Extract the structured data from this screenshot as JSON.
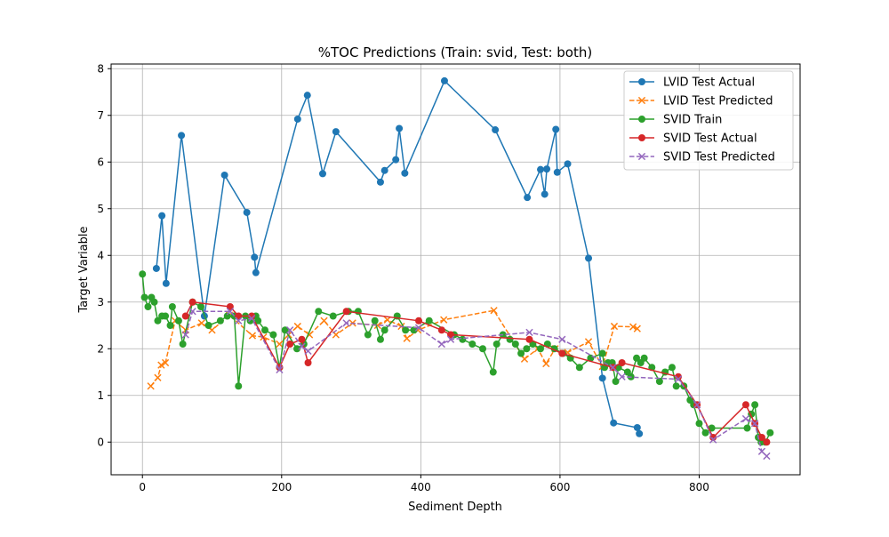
{
  "chart_data": {
    "type": "line",
    "title": "%TOC Predictions (Train: svid, Test: both)",
    "xlabel": "Sediment Depth",
    "ylabel": "Target Variable",
    "xlim": [
      -45,
      945
    ],
    "ylim": [
      -0.7,
      8.1
    ],
    "xticks": [
      0,
      200,
      400,
      600,
      800
    ],
    "yticks": [
      0,
      1,
      2,
      3,
      4,
      5,
      6,
      7,
      8
    ],
    "grid": true,
    "legend_position": "top-right",
    "series": [
      {
        "name": "LVID Test Actual",
        "color": "#1f77b4",
        "line": "solid",
        "marker": "circle",
        "x": [
          20,
          28,
          34,
          56,
          89,
          118,
          150,
          161,
          163,
          223,
          237,
          259,
          278,
          342,
          348,
          364,
          369,
          377,
          434,
          507,
          553,
          572,
          578,
          581,
          594,
          596,
          611,
          641,
          661,
          677,
          711,
          714
        ],
        "y": [
          3.72,
          4.85,
          3.4,
          6.57,
          2.7,
          5.72,
          4.92,
          3.96,
          3.63,
          6.92,
          7.43,
          5.75,
          6.65,
          5.57,
          5.82,
          6.05,
          6.72,
          5.76,
          7.74,
          6.69,
          5.24,
          5.84,
          5.31,
          5.85,
          6.7,
          5.78,
          5.96,
          3.94,
          1.37,
          0.41,
          0.31,
          0.18
        ]
      },
      {
        "name": "LVID Test Predicted",
        "color": "#ff7f0e",
        "line": "dashed",
        "marker": "x",
        "x": [
          12,
          22,
          27,
          33,
          47,
          62,
          85,
          100,
          125,
          158,
          174,
          197,
          210,
          223,
          240,
          261,
          278,
          302,
          338,
          352,
          372,
          380,
          396,
          433,
          505,
          549,
          568,
          580,
          593,
          611,
          641,
          661,
          678,
          705,
          711
        ],
        "y": [
          1.2,
          1.38,
          1.65,
          1.7,
          2.6,
          2.4,
          2.55,
          2.4,
          2.72,
          2.28,
          2.25,
          2.1,
          2.3,
          2.48,
          2.3,
          2.6,
          2.3,
          2.55,
          2.5,
          2.62,
          2.48,
          2.22,
          2.4,
          2.62,
          2.82,
          1.78,
          2.0,
          1.68,
          2.0,
          1.92,
          2.15,
          1.62,
          2.48,
          2.47,
          2.43
        ]
      },
      {
        "name": "SVID Train",
        "color": "#2ca02c",
        "line": "solid",
        "marker": "circle",
        "x": [
          0,
          3,
          8,
          13,
          17,
          22,
          28,
          33,
          40,
          43,
          52,
          58,
          72,
          84,
          95,
          112,
          122,
          132,
          138,
          148,
          155,
          163,
          166,
          176,
          188,
          197,
          205,
          222,
          232,
          253,
          274,
          296,
          310,
          324,
          334,
          342,
          348,
          366,
          378,
          390,
          412,
          448,
          460,
          474,
          489,
          504,
          509,
          518,
          528,
          536,
          544,
          552,
          561,
          572,
          582,
          592,
          604,
          615,
          628,
          644,
          661,
          664,
          669,
          675,
          680,
          684,
          697,
          702,
          710,
          716,
          721,
          732,
          743,
          751,
          761,
          767,
          778,
          787,
          792,
          800,
          809,
          818,
          869,
          875,
          880,
          885,
          889,
          895,
          902
        ],
        "y": [
          3.6,
          3.1,
          2.9,
          3.1,
          3.0,
          2.6,
          2.7,
          2.7,
          2.5,
          2.9,
          2.6,
          2.1,
          3.0,
          2.9,
          2.5,
          2.6,
          2.7,
          2.7,
          1.2,
          2.7,
          2.6,
          2.7,
          2.6,
          2.4,
          2.3,
          1.6,
          2.4,
          2.0,
          2.1,
          2.8,
          2.7,
          2.8,
          2.8,
          2.3,
          2.6,
          2.2,
          2.4,
          2.7,
          2.4,
          2.4,
          2.6,
          2.3,
          2.2,
          2.1,
          2.0,
          1.5,
          2.1,
          2.3,
          2.2,
          2.1,
          1.9,
          2.0,
          2.1,
          2.0,
          2.1,
          2.0,
          1.9,
          1.8,
          1.6,
          1.8,
          1.9,
          1.6,
          1.7,
          1.7,
          1.3,
          1.6,
          1.5,
          1.4,
          1.8,
          1.7,
          1.8,
          1.6,
          1.3,
          1.5,
          1.6,
          1.2,
          1.2,
          0.9,
          0.8,
          0.4,
          0.2,
          0.3,
          0.3,
          0.6,
          0.8,
          0.1,
          0.0,
          0.0,
          0.2
        ]
      },
      {
        "name": "SVID Test Actual",
        "color": "#d62728",
        "line": "solid",
        "marker": "circle",
        "x": [
          62,
          72,
          126,
          138,
          157,
          197,
          212,
          229,
          238,
          293,
          397,
          430,
          443,
          556,
          603,
          676,
          689,
          770,
          797,
          820,
          867,
          880,
          890,
          897
        ],
        "y": [
          2.7,
          3.0,
          2.9,
          2.7,
          2.7,
          1.6,
          2.1,
          2.2,
          1.7,
          2.8,
          2.6,
          2.4,
          2.3,
          2.2,
          1.9,
          1.6,
          1.7,
          1.4,
          0.8,
          0.1,
          0.8,
          0.4,
          0.1,
          0.0
        ]
      },
      {
        "name": "SVID Test Predicted",
        "color": "#9467bd",
        "line": "dashed",
        "marker": "x",
        "x": [
          62,
          72,
          126,
          138,
          157,
          197,
          212,
          229,
          238,
          293,
          397,
          430,
          443,
          556,
          603,
          676,
          689,
          770,
          797,
          820,
          867,
          880,
          890,
          897
        ],
        "y": [
          2.3,
          2.8,
          2.8,
          2.6,
          2.65,
          1.55,
          2.4,
          2.05,
          1.95,
          2.55,
          2.45,
          2.1,
          2.2,
          2.35,
          2.2,
          1.6,
          1.4,
          1.35,
          0.8,
          0.05,
          0.5,
          0.4,
          -0.2,
          -0.3
        ]
      }
    ]
  }
}
